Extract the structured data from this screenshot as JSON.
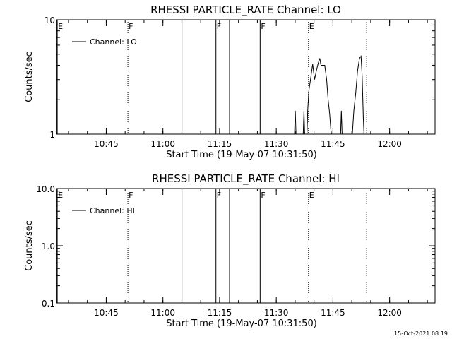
{
  "footer_stamp": "15-Oct-2021 08:19",
  "chart_data": [
    {
      "type": "line",
      "title": "RHESSI PARTICLE_RATE Channel: LO",
      "xlabel": "Start Time (19-May-07 10:31:50)",
      "ylabel": "Counts/sec",
      "yscale": "log",
      "ylim": [
        1,
        10
      ],
      "y_tick_labels": [
        {
          "v": 1,
          "t": "1"
        },
        {
          "v": 10,
          "t": "10"
        }
      ],
      "x_start_minutes": 0,
      "xlim_minutes": [
        0,
        100.2
      ],
      "x_tick_labels": [
        {
          "m": 13.17,
          "t": "10:45"
        },
        {
          "m": 28.17,
          "t": "11:00"
        },
        {
          "m": 43.17,
          "t": "11:15"
        },
        {
          "m": 58.17,
          "t": "11:30"
        },
        {
          "m": 73.17,
          "t": "11:45"
        },
        {
          "m": 88.17,
          "t": "12:00"
        }
      ],
      "legend": {
        "label": "Channel: LO",
        "position": "top-left"
      },
      "markers": [
        {
          "m": 0.2,
          "flag": "E",
          "style": "solid"
        },
        {
          "m": 18.9,
          "flag": "F",
          "style": "dotted"
        },
        {
          "m": 33.2,
          "flag": "",
          "style": "solid"
        },
        {
          "m": 42.2,
          "flag": "F",
          "style": "solid"
        },
        {
          "m": 45.8,
          "flag": "",
          "style": "solid"
        },
        {
          "m": 53.9,
          "flag": "F",
          "style": "solid"
        },
        {
          "m": 66.7,
          "flag": "E",
          "style": "dotted"
        },
        {
          "m": 82.1,
          "flag": "",
          "style": "dotted"
        }
      ],
      "series": [
        {
          "segments": [
            [
              [
                63.0,
                1
              ],
              [
                63.2,
                1.6
              ],
              [
                63.4,
                1
              ]
            ],
            [
              [
                65.3,
                1
              ],
              [
                65.5,
                1.6
              ],
              [
                65.7,
                1
              ]
            ],
            [
              [
                66.3,
                1
              ],
              [
                66.5,
                1.6
              ],
              [
                66.8,
                2.4
              ],
              [
                67.3,
                3.1
              ],
              [
                67.8,
                4.1
              ],
              [
                68.3,
                3.0
              ],
              [
                68.8,
                3.6
              ],
              [
                69.3,
                4.2
              ],
              [
                69.7,
                4.6
              ],
              [
                70.0,
                4.0
              ],
              [
                70.5,
                4.0
              ],
              [
                71.0,
                4.0
              ],
              [
                71.5,
                3.0
              ],
              [
                71.9,
                2.0
              ],
              [
                72.3,
                1.5
              ],
              [
                72.6,
                1.1
              ],
              [
                72.8,
                1
              ]
            ],
            [
              [
                75.2,
                1
              ],
              [
                75.4,
                1.6
              ],
              [
                75.6,
                1
              ]
            ],
            [
              [
                78.3,
                1
              ],
              [
                78.7,
                1.6
              ],
              [
                79.2,
                2.3
              ],
              [
                79.7,
                3.6
              ],
              [
                80.2,
                4.6
              ],
              [
                80.6,
                4.8
              ],
              [
                80.9,
                3.2
              ],
              [
                81.2,
                1.4
              ],
              [
                81.4,
                1
              ]
            ]
          ]
        }
      ]
    },
    {
      "type": "line",
      "title": "RHESSI PARTICLE_RATE Channel: HI",
      "xlabel": "Start Time (19-May-07 10:31:50)",
      "ylabel": "Counts/sec",
      "yscale": "log",
      "ylim": [
        0.1,
        10
      ],
      "y_tick_labels": [
        {
          "v": 0.1,
          "t": "0.1"
        },
        {
          "v": 1,
          "t": "1.0"
        },
        {
          "v": 10,
          "t": "10.0"
        }
      ],
      "x_start_minutes": 0,
      "xlim_minutes": [
        0,
        100.2
      ],
      "x_tick_labels": [
        {
          "m": 13.17,
          "t": "10:45"
        },
        {
          "m": 28.17,
          "t": "11:00"
        },
        {
          "m": 43.17,
          "t": "11:15"
        },
        {
          "m": 58.17,
          "t": "11:30"
        },
        {
          "m": 73.17,
          "t": "11:45"
        },
        {
          "m": 88.17,
          "t": "12:00"
        }
      ],
      "legend": {
        "label": "Channel: HI",
        "position": "top-left"
      },
      "markers": [
        {
          "m": 0.2,
          "flag": "E",
          "style": "solid"
        },
        {
          "m": 18.9,
          "flag": "F",
          "style": "dotted"
        },
        {
          "m": 33.2,
          "flag": "",
          "style": "solid"
        },
        {
          "m": 42.2,
          "flag": "F",
          "style": "solid"
        },
        {
          "m": 45.8,
          "flag": "",
          "style": "solid"
        },
        {
          "m": 53.9,
          "flag": "F",
          "style": "solid"
        },
        {
          "m": 66.7,
          "flag": "E",
          "style": "dotted"
        },
        {
          "m": 82.1,
          "flag": "",
          "style": "dotted"
        }
      ],
      "series": [
        {
          "segments": []
        }
      ]
    }
  ]
}
